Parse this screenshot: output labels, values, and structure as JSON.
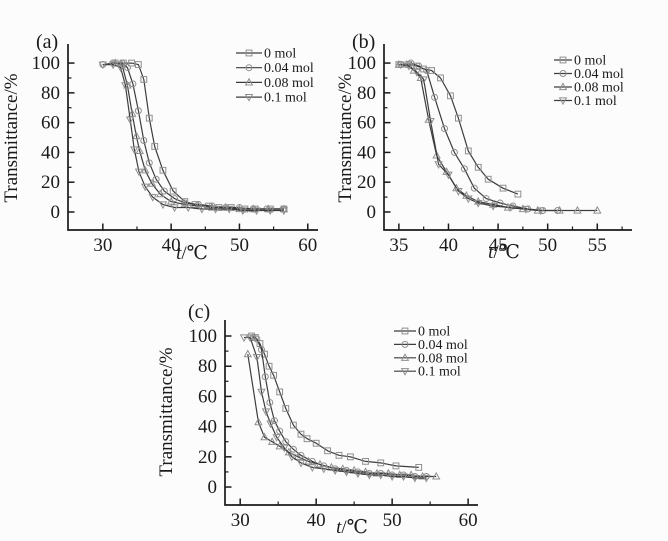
{
  "figure": {
    "colors": {
      "line": "#3d3d3d",
      "marker": "#8f8f8f",
      "axis": "#1a1a1a",
      "text": "#1b1b1b",
      "background": "#fcfcfc"
    }
  },
  "chart_data": [
    {
      "id": "a",
      "type": "line",
      "panel_label": "(a)",
      "xlabel": "t/℃",
      "ylabel": "Transmittance/%",
      "xlim": [
        24.9,
        61.5
      ],
      "ylim": [
        -12.1,
        112.8
      ],
      "x_ticks": [
        30,
        40,
        50,
        60
      ],
      "x_minor_ticks": [
        35,
        45,
        55
      ],
      "y_ticks": [
        0,
        20,
        40,
        60,
        80,
        100
      ],
      "y_minor_ticks": [
        10,
        30,
        50,
        70,
        90
      ],
      "grid": false,
      "legend_position": "top-right",
      "legend": [
        "0 mol",
        "0.04 mol",
        "0.08 mol",
        "0.1 mol"
      ],
      "series": [
        {
          "name": "0 mol",
          "marker": "square",
          "points": [
            [
              31.8,
              100
            ],
            [
              33,
              100
            ],
            [
              34.2,
              100
            ],
            [
              35.2,
              99
            ],
            [
              36,
              89
            ],
            [
              36.8,
              63
            ],
            [
              37.6,
              44
            ],
            [
              38.8,
              28
            ],
            [
              40.3,
              14
            ],
            [
              42,
              7
            ],
            [
              43.5,
              5
            ],
            [
              45.5,
              4
            ],
            [
              47,
              3
            ],
            [
              48.8,
              3
            ],
            [
              50.8,
              2
            ],
            [
              52.3,
              2
            ],
            [
              54.5,
              2
            ],
            [
              56.5,
              2
            ]
          ]
        },
        {
          "name": "0.04 mol",
          "marker": "circle",
          "points": [
            [
              30,
              99
            ],
            [
              31.5,
              100
            ],
            [
              32.8,
              100
            ],
            [
              33.6,
              97
            ],
            [
              34.4,
              86
            ],
            [
              35.2,
              68
            ],
            [
              36,
              48
            ],
            [
              36.8,
              33
            ],
            [
              37.8,
              22
            ],
            [
              39,
              14
            ],
            [
              40.5,
              9
            ],
            [
              42,
              6
            ],
            [
              44,
              5
            ],
            [
              46,
              4
            ],
            [
              48,
              3
            ],
            [
              50,
              3
            ],
            [
              52,
              2
            ],
            [
              54,
              2
            ],
            [
              56.5,
              2
            ]
          ]
        },
        {
          "name": "0.08 mol",
          "marker": "triangle-up",
          "points": [
            [
              31.8,
              100
            ],
            [
              32.8,
              99
            ],
            [
              33.6,
              85
            ],
            [
              34.3,
              66
            ],
            [
              34.9,
              51
            ],
            [
              35.4,
              41
            ],
            [
              36.2,
              28
            ],
            [
              37.2,
              19
            ],
            [
              38.4,
              12
            ],
            [
              40,
              7
            ],
            [
              42,
              5
            ],
            [
              44,
              4
            ],
            [
              46,
              3
            ],
            [
              48,
              3
            ],
            [
              50,
              2
            ],
            [
              52,
              2
            ],
            [
              54.2,
              2
            ],
            [
              56.5,
              2
            ]
          ]
        },
        {
          "name": "0.1 mol",
          "marker": "triangle-down",
          "points": [
            [
              30,
              99
            ],
            [
              31.5,
              99
            ],
            [
              32.6,
              97
            ],
            [
              33.3,
              85
            ],
            [
              34,
              62
            ],
            [
              34.6,
              42
            ],
            [
              35.3,
              27
            ],
            [
              36.2,
              17
            ],
            [
              37.3,
              10
            ],
            [
              38.8,
              5
            ],
            [
              40.5,
              3
            ],
            [
              42.5,
              3
            ],
            [
              44.5,
              2
            ],
            [
              46.5,
              2
            ],
            [
              48.5,
              2
            ],
            [
              50.5,
              1
            ],
            [
              52.5,
              1
            ],
            [
              54.5,
              1
            ],
            [
              56.5,
              1
            ]
          ]
        }
      ]
    },
    {
      "id": "b",
      "type": "line",
      "panel_label": "(b)",
      "xlabel": "t/℃",
      "ylabel": "Transmittance/%",
      "xlim": [
        33.5,
        58.5
      ],
      "ylim": [
        -12.1,
        112.8
      ],
      "x_ticks": [
        35,
        40,
        45,
        50,
        55
      ],
      "x_minor_ticks": [
        37.5,
        42.5,
        47.5,
        52.5,
        57.5
      ],
      "y_ticks": [
        0,
        20,
        40,
        60,
        80,
        100
      ],
      "y_minor_ticks": [
        10,
        30,
        50,
        70,
        90
      ],
      "grid": false,
      "legend_position": "top-right",
      "legend": [
        "0 mol",
        "0.04 mol",
        "0.08 mol",
        "0.1 mol"
      ],
      "series": [
        {
          "name": "0 mol",
          "marker": "square",
          "points": [
            [
              35,
              99
            ],
            [
              36,
              99
            ],
            [
              36.8,
              98
            ],
            [
              37.5,
              96
            ],
            [
              38.3,
              95
            ],
            [
              39.2,
              90
            ],
            [
              40.2,
              78
            ],
            [
              41,
              63
            ],
            [
              42,
              41
            ],
            [
              43,
              30
            ],
            [
              44,
              22
            ],
            [
              45.5,
              16
            ],
            [
              47,
              12
            ]
          ]
        },
        {
          "name": "0.04 mol",
          "marker": "circle",
          "points": [
            [
              35.2,
              99
            ],
            [
              36.2,
              100
            ],
            [
              37,
              98
            ],
            [
              37.8,
              95
            ],
            [
              38.6,
              77
            ],
            [
              39.6,
              56
            ],
            [
              40.6,
              40
            ],
            [
              41.6,
              29
            ],
            [
              42.6,
              16
            ],
            [
              43.8,
              9
            ],
            [
              45.2,
              6
            ],
            [
              46.5,
              4
            ],
            [
              48,
              2
            ],
            [
              49.5,
              1
            ],
            [
              51,
              1
            ]
          ]
        },
        {
          "name": "0.08 mol",
          "marker": "triangle-up",
          "points": [
            [
              35,
              99
            ],
            [
              35.8,
              99
            ],
            [
              36.5,
              95
            ],
            [
              37.2,
              90
            ],
            [
              38,
              62
            ],
            [
              38.8,
              38
            ],
            [
              39.8,
              27
            ],
            [
              40.8,
              16
            ],
            [
              41.8,
              11
            ],
            [
              43,
              7
            ],
            [
              44.5,
              5
            ],
            [
              46,
              3
            ],
            [
              47.5,
              2
            ],
            [
              49,
              1
            ],
            [
              51.2,
              1
            ],
            [
              53,
              1
            ],
            [
              55,
              1
            ]
          ]
        },
        {
          "name": "0.1 mol",
          "marker": "triangle-down",
          "points": [
            [
              35.2,
              99
            ],
            [
              36,
              98
            ],
            [
              36.8,
              94
            ],
            [
              37.5,
              89
            ],
            [
              38.2,
              61
            ],
            [
              39,
              32
            ],
            [
              40,
              25
            ],
            [
              41,
              14
            ],
            [
              42,
              9
            ],
            [
              43,
              6
            ],
            [
              44.5,
              4
            ],
            [
              46.2,
              3
            ],
            [
              47.8,
              2
            ],
            [
              49.3,
              1
            ]
          ]
        }
      ]
    },
    {
      "id": "c",
      "type": "line",
      "panel_label": "(c)",
      "xlabel": "t/℃",
      "ylabel": "Transmittance/%",
      "xlim": [
        28.0,
        61.3
      ],
      "ylim": [
        -11.9,
        110.6
      ],
      "x_ticks": [
        30,
        40,
        50,
        60
      ],
      "x_minor_ticks": [
        35,
        45,
        55
      ],
      "y_ticks": [
        0,
        20,
        40,
        60,
        80,
        100
      ],
      "y_minor_ticks": [
        10,
        30,
        50,
        70,
        90
      ],
      "grid": false,
      "legend_position": "top-right",
      "legend": [
        "0 mol",
        "0.04 mol",
        "0.08 mol",
        "0.1 mol"
      ],
      "series": [
        {
          "name": "0 mol",
          "marker": "square",
          "points": [
            [
              31.5,
              100
            ],
            [
              32,
              99
            ],
            [
              32.6,
              95
            ],
            [
              33.2,
              88
            ],
            [
              33.8,
              80
            ],
            [
              34.4,
              74
            ],
            [
              35.2,
              63
            ],
            [
              36,
              52
            ],
            [
              37,
              41
            ],
            [
              38,
              35
            ],
            [
              38.8,
              32
            ],
            [
              40,
              29
            ],
            [
              41.5,
              24
            ],
            [
              43,
              21
            ],
            [
              44.5,
              20
            ],
            [
              46.5,
              17
            ],
            [
              48.5,
              16
            ],
            [
              50.5,
              14
            ],
            [
              53.5,
              13
            ]
          ]
        },
        {
          "name": "0.04 mol",
          "marker": "circle",
          "points": [
            [
              31.7,
              99
            ],
            [
              32.2,
              98
            ],
            [
              32.8,
              91
            ],
            [
              33.3,
              73
            ],
            [
              33.9,
              56
            ],
            [
              34.5,
              44
            ],
            [
              35.2,
              37
            ],
            [
              36,
              30
            ],
            [
              37,
              25
            ],
            [
              38,
              21
            ],
            [
              39.5,
              17
            ],
            [
              41,
              14
            ],
            [
              42.5,
              12
            ],
            [
              44,
              11
            ],
            [
              45.5,
              10
            ],
            [
              47,
              9
            ],
            [
              48.5,
              9
            ],
            [
              50,
              8
            ],
            [
              51.5,
              8
            ],
            [
              53,
              7
            ],
            [
              54.5,
              7
            ]
          ]
        },
        {
          "name": "0.08 mol",
          "marker": "triangle-up",
          "points": [
            [
              31,
              88
            ],
            [
              32.4,
              43
            ],
            [
              33.2,
              33
            ],
            [
              34.2,
              30
            ],
            [
              35.2,
              27
            ],
            [
              36.4,
              23
            ],
            [
              37.6,
              20
            ],
            [
              39,
              17
            ],
            [
              40.5,
              15
            ],
            [
              42,
              13
            ],
            [
              43.5,
              12
            ],
            [
              45,
              11
            ],
            [
              46.5,
              10
            ],
            [
              48,
              9
            ],
            [
              49.5,
              9
            ],
            [
              51,
              8
            ],
            [
              52.5,
              8
            ],
            [
              54,
              7
            ],
            [
              55.8,
              7
            ]
          ]
        },
        {
          "name": "0.1 mol",
          "marker": "triangle-down",
          "points": [
            [
              30.5,
              99
            ],
            [
              31.3,
              99
            ],
            [
              32.2,
              86
            ],
            [
              32.8,
              63
            ],
            [
              33.4,
              50
            ],
            [
              34,
              42
            ],
            [
              34.8,
              33
            ],
            [
              35.8,
              26
            ],
            [
              36.8,
              20
            ],
            [
              38,
              16
            ],
            [
              39.5,
              13
            ],
            [
              41,
              12
            ],
            [
              42.5,
              11
            ],
            [
              44,
              10
            ],
            [
              45.5,
              9
            ],
            [
              47,
              8
            ],
            [
              48.5,
              8
            ],
            [
              50,
              7
            ],
            [
              51.5,
              7
            ],
            [
              53,
              6
            ],
            [
              54.5,
              6
            ]
          ]
        }
      ]
    }
  ]
}
